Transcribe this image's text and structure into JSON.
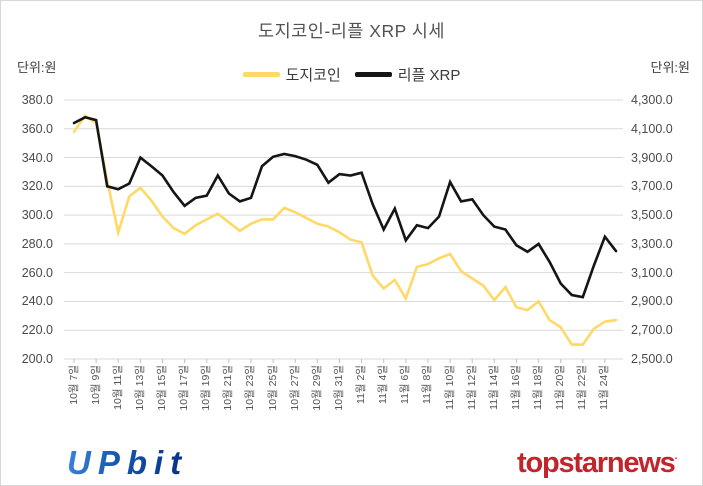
{
  "title": "도지코인-리플 XRP 시세",
  "legend": [
    {
      "label": "도지코인",
      "color": "#FFD966"
    },
    {
      "label": "리플 XRP",
      "color": "#151515"
    }
  ],
  "left_axis": {
    "unit_label": "단위:원",
    "tick_labels": [
      "380.0",
      "360.0",
      "340.0",
      "320.0",
      "300.0",
      "280.0",
      "260.0",
      "240.0",
      "220.0",
      "200.0"
    ]
  },
  "right_axis": {
    "unit_label": "단위:원",
    "tick_labels": [
      "4,300.0",
      "4,100.0",
      "3,900.0",
      "3,700.0",
      "3,500.0",
      "3,300.0",
      "3,100.0",
      "2,900.0",
      "2,700.0",
      "2,500.0"
    ]
  },
  "footer": {
    "left_logo": "UPbit",
    "right_logo": "topstarnews",
    "right_logo_mark": "·"
  },
  "colors": {
    "doge_line": "#FFD966",
    "xrp_line": "#151515",
    "gridline": "#d9d9d9",
    "tick_mark": "#bfbfbf",
    "upbit_blue": "#1453ad",
    "topstar_red": "#c2242b"
  },
  "chart_data": {
    "type": "line",
    "title": "도지코인-리플 XRP 시세",
    "grid": true,
    "legend_position": "top",
    "left_ylim": [
      200,
      380
    ],
    "right_ylim": [
      2500,
      4300
    ],
    "left_ytick_step": 20,
    "right_ytick_step": 200,
    "x_tick_labels": [
      "10월 7일",
      "10월 9일",
      "10월 11일",
      "10월 13일",
      "10월 15일",
      "10월 17일",
      "10월 19일",
      "10월 21일",
      "10월 23일",
      "10월 25일",
      "10월 27일",
      "10월 29일",
      "10월 31일",
      "11월 2일",
      "11월 4일",
      "11월 6일",
      "11월 8일",
      "11월 10일",
      "11월 12일",
      "11월 14일",
      "11월 16일",
      "11월 18일",
      "11월 20일",
      "11월 22일",
      "11월 24일"
    ],
    "x": [
      "10월 7일",
      "10월 8일",
      "10월 9일",
      "10월 10일",
      "10월 11일",
      "10월 12일",
      "10월 13일",
      "10월 14일",
      "10월 15일",
      "10월 16일",
      "10월 17일",
      "10월 18일",
      "10월 19일",
      "10월 20일",
      "10월 21일",
      "10월 22일",
      "10월 23일",
      "10월 24일",
      "10월 25일",
      "10월 26일",
      "10월 27일",
      "10월 28일",
      "10월 29일",
      "10월 30일",
      "10월 31일",
      "11월 1일",
      "11월 2일",
      "11월 3일",
      "11월 4일",
      "11월 5일",
      "11월 6일",
      "11월 7일",
      "11월 8일",
      "11월 9일",
      "11월 10일",
      "11월 11일",
      "11월 12일",
      "11월 13일",
      "11월 14일",
      "11월 15일",
      "11월 16일",
      "11월 17일",
      "11월 18일",
      "11월 19일",
      "11월 20일",
      "11월 21일",
      "11월 22일",
      "11월 23일",
      "11월 24일",
      "11월 25일"
    ],
    "series": [
      {
        "name": "도지코인",
        "axis": "left",
        "unit": "원",
        "color": "#FFD966",
        "values": [
          358,
          369,
          364,
          324,
          288,
          313,
          319,
          310,
          299,
          291,
          287,
          293,
          297,
          301,
          295,
          289,
          294,
          297,
          297,
          305,
          302,
          298,
          294,
          292,
          288,
          283,
          281,
          258,
          249,
          255,
          242,
          264,
          266,
          270,
          273,
          261,
          256,
          251,
          241,
          250,
          236,
          234,
          240,
          227,
          222,
          210,
          210,
          221,
          226,
          227
        ]
      },
      {
        "name": "리플 XRP",
        "axis": "right",
        "unit": "원",
        "color": "#151515",
        "values": [
          4140,
          4180,
          4160,
          3700,
          3680,
          3720,
          3900,
          3840,
          3775,
          3660,
          3565,
          3620,
          3635,
          3775,
          3650,
          3595,
          3620,
          3840,
          3905,
          3925,
          3910,
          3885,
          3850,
          3725,
          3785,
          3775,
          3795,
          3575,
          3400,
          3545,
          3325,
          3430,
          3410,
          3490,
          3730,
          3595,
          3610,
          3500,
          3420,
          3400,
          3290,
          3245,
          3300,
          3175,
          3025,
          2945,
          2930,
          3150,
          3350,
          3250
        ]
      }
    ]
  }
}
